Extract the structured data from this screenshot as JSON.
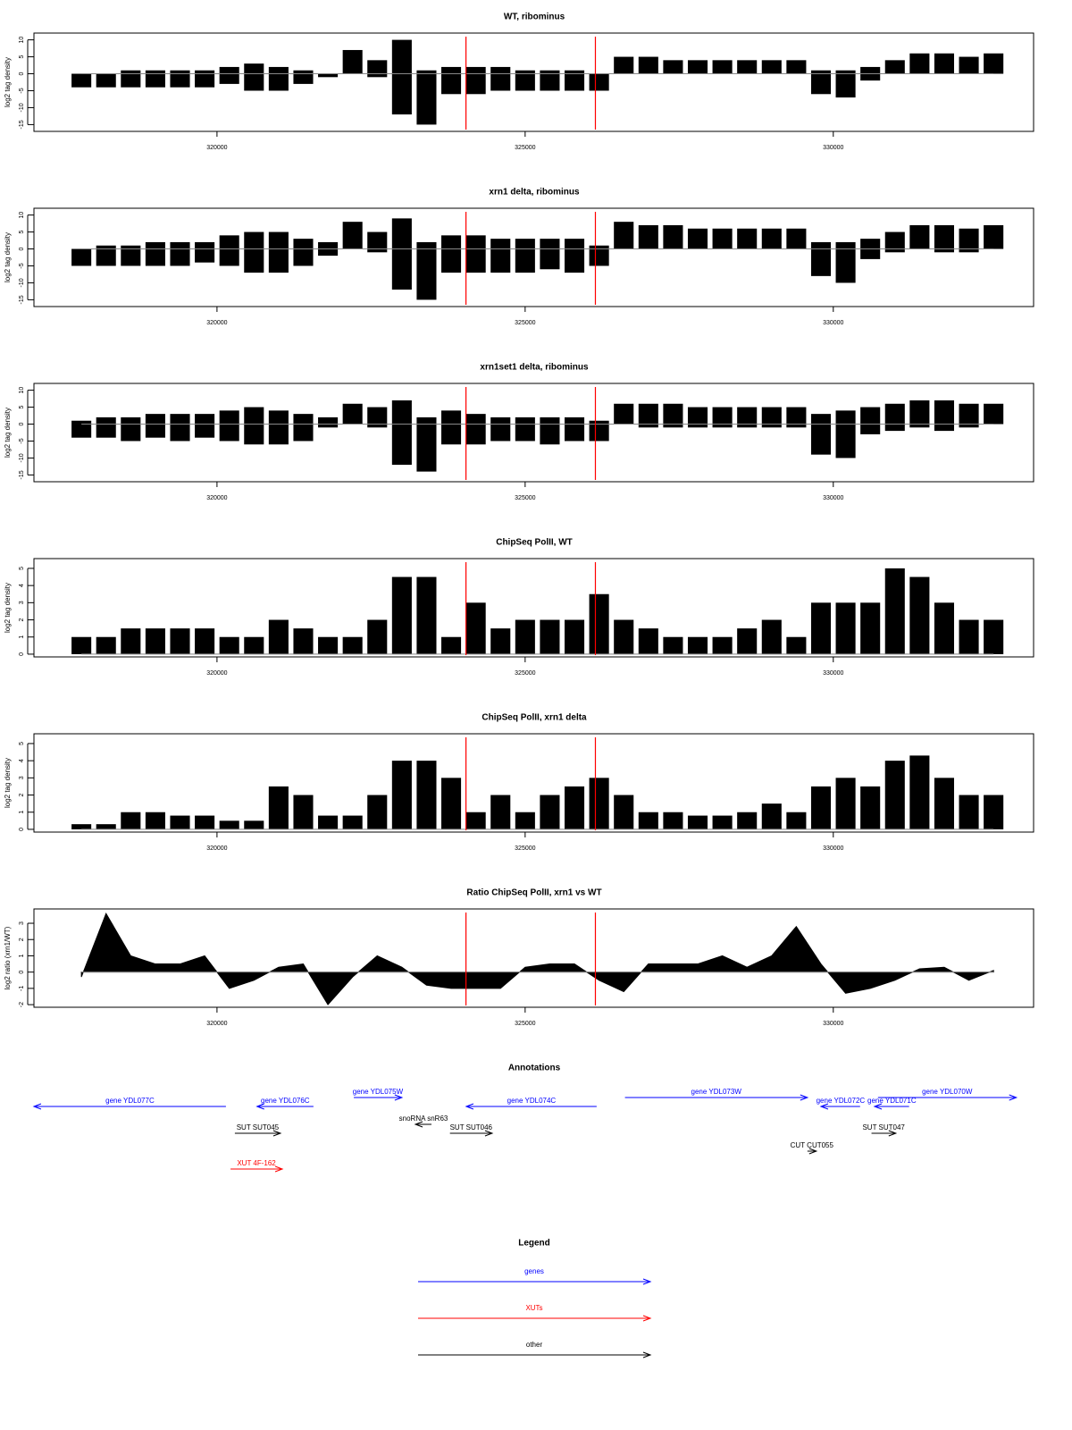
{
  "chart_data": [
    {
      "type": "bar",
      "title": "WT, ribominus",
      "y_label": "log2 tag density",
      "xlim": [
        317030,
        333250
      ],
      "xticks": [
        320000,
        325000,
        330000
      ],
      "ylim": [
        -17,
        12
      ],
      "yticks": [
        -15,
        -10,
        -5,
        0,
        5,
        10
      ],
      "vlines": [
        324040,
        326140
      ],
      "vline_color": "red",
      "x": [
        317800,
        318200,
        318600,
        319000,
        319400,
        319800,
        320200,
        320600,
        321000,
        321400,
        321800,
        322200,
        322600,
        323000,
        323400,
        323800,
        324200,
        324600,
        325000,
        325400,
        325800,
        326200,
        326600,
        327000,
        327400,
        327800,
        328200,
        328600,
        329000,
        329400,
        329800,
        330200,
        330600,
        331000,
        331400,
        331800,
        332200,
        332600
      ],
      "series": [
        {
          "color": "black",
          "values": [
            0,
            0,
            1,
            1,
            1,
            1,
            2,
            3,
            2,
            1,
            0,
            7,
            4,
            10,
            1,
            2,
            2,
            2,
            1,
            1,
            1,
            0,
            5,
            5,
            4,
            4,
            4,
            4,
            4,
            4,
            1,
            1,
            2,
            4,
            6,
            6,
            5,
            6
          ]
        },
        {
          "color": "black",
          "values": [
            -4,
            -4,
            -4,
            -4,
            -4,
            -4,
            -3,
            -5,
            -5,
            -3,
            -1,
            0,
            -1,
            -12,
            -15,
            -6,
            -6,
            -5,
            -5,
            -5,
            -5,
            -5,
            0,
            0,
            0,
            0,
            0,
            0,
            0,
            0,
            -6,
            -7,
            -2,
            0,
            0,
            0,
            0,
            0
          ]
        }
      ]
    },
    {
      "type": "bar",
      "title": "xrn1 delta, ribominus",
      "y_label": "log2 tag density",
      "xlim": [
        317030,
        333250
      ],
      "xticks": [
        320000,
        325000,
        330000
      ],
      "ylim": [
        -17,
        12
      ],
      "yticks": [
        -15,
        -10,
        -5,
        0,
        5,
        10
      ],
      "vlines": [
        324040,
        326140
      ],
      "vline_color": "red",
      "x": [
        317800,
        318200,
        318600,
        319000,
        319400,
        319800,
        320200,
        320600,
        321000,
        321400,
        321800,
        322200,
        322600,
        323000,
        323400,
        323800,
        324200,
        324600,
        325000,
        325400,
        325800,
        326200,
        326600,
        327000,
        327400,
        327800,
        328200,
        328600,
        329000,
        329400,
        329800,
        330200,
        330600,
        331000,
        331400,
        331800,
        332200,
        332600
      ],
      "series": [
        {
          "color": "black",
          "values": [
            0,
            1,
            1,
            2,
            2,
            2,
            4,
            5,
            5,
            3,
            2,
            8,
            5,
            9,
            2,
            4,
            4,
            3,
            3,
            3,
            3,
            1,
            8,
            7,
            7,
            6,
            6,
            6,
            6,
            6,
            2,
            2,
            3,
            5,
            7,
            7,
            6,
            7
          ]
        },
        {
          "color": "black",
          "values": [
            -5,
            -5,
            -5,
            -5,
            -5,
            -4,
            -5,
            -7,
            -7,
            -5,
            -2,
            0,
            -1,
            -12,
            -15,
            -7,
            -7,
            -7,
            -7,
            -6,
            -7,
            -5,
            0,
            0,
            0,
            0,
            0,
            0,
            0,
            0,
            -8,
            -10,
            -3,
            -1,
            0,
            -1,
            -1,
            0
          ]
        }
      ]
    },
    {
      "type": "bar",
      "title": "xrn1set1 delta, ribominus",
      "y_label": "log2 tag density",
      "xlim": [
        317030,
        333250
      ],
      "xticks": [
        320000,
        325000,
        330000
      ],
      "ylim": [
        -17,
        12
      ],
      "yticks": [
        -15,
        -10,
        -5,
        0,
        5,
        10
      ],
      "vlines": [
        324040,
        326140
      ],
      "vline_color": "red",
      "x": [
        317800,
        318200,
        318600,
        319000,
        319400,
        319800,
        320200,
        320600,
        321000,
        321400,
        321800,
        322200,
        322600,
        323000,
        323400,
        323800,
        324200,
        324600,
        325000,
        325400,
        325800,
        326200,
        326600,
        327000,
        327400,
        327800,
        328200,
        328600,
        329000,
        329400,
        329800,
        330200,
        330600,
        331000,
        331400,
        331800,
        332200,
        332600
      ],
      "series": [
        {
          "color": "black",
          "values": [
            1,
            2,
            2,
            3,
            3,
            3,
            4,
            5,
            4,
            3,
            2,
            6,
            5,
            7,
            2,
            4,
            3,
            2,
            2,
            2,
            2,
            1,
            6,
            6,
            6,
            5,
            5,
            5,
            5,
            5,
            3,
            4,
            5,
            6,
            7,
            7,
            6,
            6
          ]
        },
        {
          "color": "black",
          "values": [
            -4,
            -4,
            -5,
            -4,
            -5,
            -4,
            -5,
            -6,
            -6,
            -5,
            -1,
            0,
            -1,
            -12,
            -14,
            -6,
            -6,
            -5,
            -5,
            -6,
            -5,
            -5,
            0,
            -1,
            -1,
            -1,
            -1,
            -1,
            -1,
            -1,
            -9,
            -10,
            -3,
            -2,
            -1,
            -2,
            -1,
            0
          ]
        }
      ]
    },
    {
      "type": "bar",
      "title": "ChipSeq PolII, WT",
      "y_label": "log2 tag density",
      "xlim": [
        317030,
        333250
      ],
      "xticks": [
        320000,
        325000,
        330000
      ],
      "ylim": [
        -0.16,
        5.57
      ],
      "yticks": [
        0,
        1,
        2,
        3,
        4,
        5
      ],
      "vlines": [
        324040,
        326140
      ],
      "vline_color": "red",
      "x": [
        317800,
        318200,
        318600,
        319000,
        319400,
        319800,
        320200,
        320600,
        321000,
        321400,
        321800,
        322200,
        322600,
        323000,
        323400,
        323800,
        324200,
        324600,
        325000,
        325400,
        325800,
        326200,
        326600,
        327000,
        327400,
        327800,
        328200,
        328600,
        329000,
        329400,
        329800,
        330200,
        330600,
        331000,
        331400,
        331800,
        332200,
        332600
      ],
      "series": [
        {
          "color": "black",
          "values": [
            1,
            1,
            1.5,
            1.5,
            1.5,
            1.5,
            1,
            1,
            2,
            1.5,
            1,
            1,
            2,
            4.5,
            4.5,
            1,
            3,
            1.5,
            2,
            2,
            2,
            3.5,
            2,
            1.5,
            1,
            1,
            1,
            1.5,
            2,
            1,
            3,
            3,
            3,
            5,
            4.5,
            3,
            2,
            2
          ]
        }
      ]
    },
    {
      "type": "bar",
      "title": "ChipSeq PolII, xrn1 delta",
      "y_label": "log2 tag density",
      "xlim": [
        317030,
        333250
      ],
      "xticks": [
        320000,
        325000,
        330000
      ],
      "ylim": [
        -0.16,
        5.57
      ],
      "yticks": [
        0,
        1,
        2,
        3,
        4,
        5
      ],
      "vlines": [
        324040,
        326140
      ],
      "vline_color": "red",
      "x": [
        317800,
        318200,
        318600,
        319000,
        319400,
        319800,
        320200,
        320600,
        321000,
        321400,
        321800,
        322200,
        322600,
        323000,
        323400,
        323800,
        324200,
        324600,
        325000,
        325400,
        325800,
        326200,
        326600,
        327000,
        327400,
        327800,
        328200,
        328600,
        329000,
        329400,
        329800,
        330200,
        330600,
        331000,
        331400,
        331800,
        332200,
        332600
      ],
      "series": [
        {
          "color": "black",
          "values": [
            0.3,
            0.3,
            1,
            1,
            0.8,
            0.8,
            0.5,
            0.5,
            2.5,
            2,
            0.8,
            0.8,
            2,
            4,
            4,
            3,
            1,
            2,
            1,
            2,
            2.5,
            3,
            2,
            1,
            1,
            0.8,
            0.8,
            1,
            1.5,
            1,
            2.5,
            3,
            2.5,
            4,
            4.3,
            3,
            2,
            2
          ]
        }
      ]
    },
    {
      "type": "area",
      "title": "Ratio ChipSeq PolII, xrn1 vs WT",
      "y_label": "log2 ratio (xrn1/WT)",
      "xlim": [
        317030,
        333250
      ],
      "xticks": [
        320000,
        325000,
        330000
      ],
      "ylim": [
        -2.16,
        3.88
      ],
      "yticks": [
        -2,
        -1,
        0,
        1,
        2,
        3
      ],
      "vlines": [
        324040,
        326140
      ],
      "vline_color": "red",
      "x": [
        317800,
        318200,
        318600,
        319000,
        319400,
        319800,
        320200,
        320600,
        321000,
        321400,
        321800,
        322200,
        322600,
        323000,
        323400,
        323800,
        324200,
        324600,
        325000,
        325400,
        325800,
        326200,
        326600,
        327000,
        327400,
        327800,
        328200,
        328600,
        329000,
        329400,
        329800,
        330200,
        330600,
        331000,
        331400,
        331800,
        332200,
        332600
      ],
      "series": [
        {
          "color": "black",
          "values": [
            -0.3,
            3.6,
            1,
            0.5,
            0.5,
            1,
            -1,
            -0.5,
            0.3,
            0.5,
            -2,
            -0.3,
            1,
            0.3,
            -0.8,
            -1,
            -1,
            -1,
            0.3,
            0.5,
            0.5,
            -0.5,
            -1.2,
            0.5,
            0.5,
            0.5,
            1,
            0.3,
            1,
            2.8,
            0.5,
            -1.3,
            -1,
            -0.5,
            0.2,
            0.3,
            -0.5,
            0.1
          ]
        }
      ]
    },
    {
      "type": "features",
      "title": "Annotations",
      "xlim": [
        317030,
        333250
      ],
      "features": [
        {
          "label": "gene YDL077C",
          "start": 317030,
          "end": 320145,
          "strand": "-",
          "color": "blue"
        },
        {
          "label": "gene YDL076C",
          "start": 320650,
          "end": 321565,
          "strand": "-",
          "color": "blue"
        },
        {
          "label": "gene YDL075W",
          "start": 322220,
          "end": 323000,
          "strand": "+",
          "color": "blue"
        },
        {
          "label": "snoRNA snR63",
          "start": 323220,
          "end": 323480,
          "strand": "-",
          "color": "black"
        },
        {
          "label": "gene YDL074C",
          "start": 324045,
          "end": 326160,
          "strand": "-",
          "color": "blue"
        },
        {
          "label": "gene YDL073W",
          "start": 326620,
          "end": 329580,
          "strand": "+",
          "color": "blue"
        },
        {
          "label": "gene YDL072C",
          "start": 329800,
          "end": 330435,
          "strand": "-",
          "color": "blue"
        },
        {
          "label": "gene YDL071C",
          "start": 330670,
          "end": 331230,
          "strand": "-",
          "color": "blue"
        },
        {
          "label": "gene YDL070W",
          "start": 330725,
          "end": 332970,
          "strand": "+",
          "color": "blue"
        },
        {
          "label": "SUT SUT045",
          "start": 320290,
          "end": 321030,
          "strand": "+",
          "color": "black"
        },
        {
          "label": "SUT SUT046",
          "start": 323780,
          "end": 324465,
          "strand": "+",
          "color": "black"
        },
        {
          "label": "SUT SUT047",
          "start": 330620,
          "end": 331015,
          "strand": "+",
          "color": "black"
        },
        {
          "label": "CUT CUT055",
          "start": 329580,
          "end": 329725,
          "strand": "+",
          "color": "black"
        },
        {
          "label": "XUT 4F-162",
          "start": 320220,
          "end": 321060,
          "strand": "+",
          "color": "red"
        }
      ]
    }
  ],
  "legend": {
    "title": "Legend",
    "entries": [
      {
        "label": "genes",
        "color": "blue"
      },
      {
        "label": "XUTs",
        "color": "red"
      },
      {
        "label": "other",
        "color": "black"
      }
    ]
  }
}
